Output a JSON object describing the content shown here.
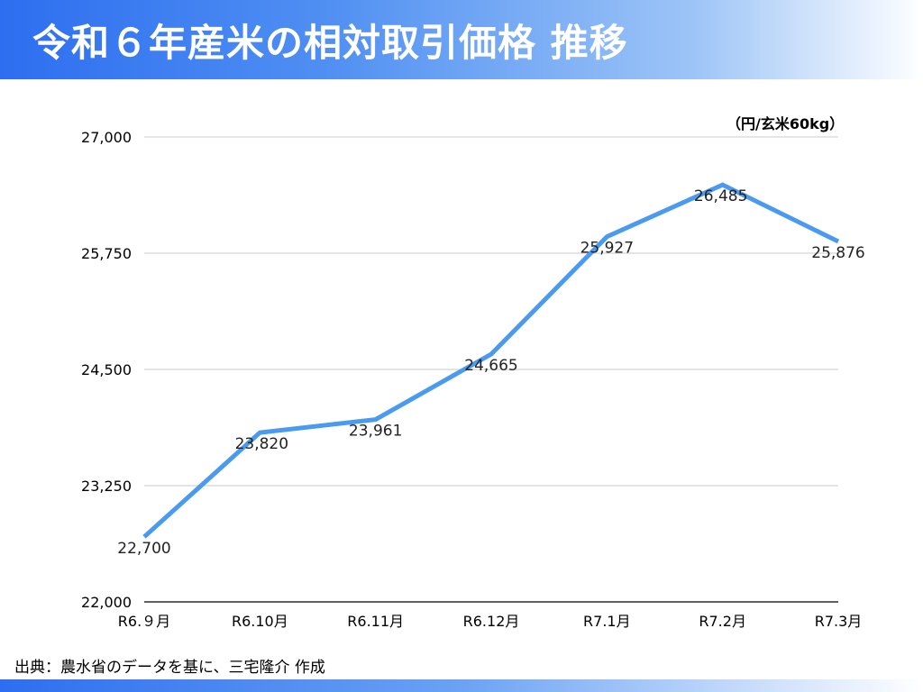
{
  "header": {
    "title": "令和６年産米の相対取引価格 推移"
  },
  "unit_label": "（円/玄米60kg）",
  "source": "出典：農水省のデータを基に、三宅隆介 作成",
  "colors": {
    "line": "#4a9af0",
    "grid": "#c8c8c8",
    "axis": "#000000"
  },
  "chart_data": {
    "type": "line",
    "title": "令和６年産米の相対取引価格 推移",
    "ylabel": "（円/玄米60kg）",
    "xlabel": "",
    "categories": [
      "R6.９月",
      "R6.10月",
      "R6.11月",
      "R6.12月",
      "R7.1月",
      "R7.2月",
      "R7.3月"
    ],
    "series": [
      {
        "values": [
          22700,
          23820,
          23961,
          24665,
          25927,
          26485,
          25876
        ]
      }
    ],
    "data_labels": [
      "22,700",
      "23,820",
      "23,961",
      "24,665",
      "25,927",
      "26,485",
      "25,876"
    ],
    "ylim": [
      22000,
      27000
    ],
    "yticks": [
      22000,
      23250,
      24500,
      25750,
      27000
    ],
    "ytick_labels": [
      "22,000",
      "23,250",
      "24,500",
      "25,750",
      "27,000"
    ],
    "grid": true,
    "legend": "none"
  }
}
